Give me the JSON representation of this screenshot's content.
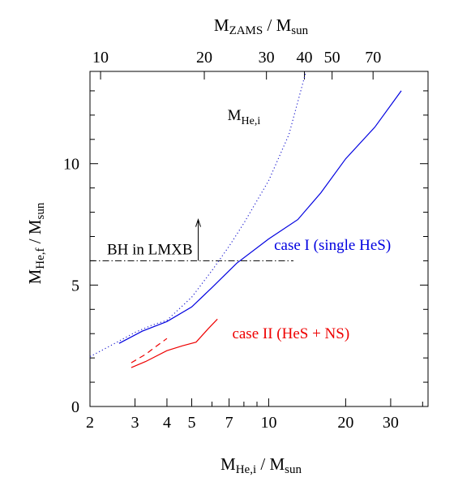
{
  "chart_data": {
    "type": "line",
    "xlabel": "M",
    "xlabel_sub": "He,i",
    "xlabel_unit": " / M",
    "xlabel_unit_sub": "sun",
    "ylabel": "M",
    "ylabel_sub": "He,f",
    "ylabel_unit": " / M",
    "ylabel_unit_sub": "sun",
    "top_xlabel": "M",
    "top_xlabel_sub": "ZAMS",
    "top_xlabel_unit": " / M",
    "top_xlabel_unit_sub": "sun",
    "x_scale": "log",
    "xlim": [
      2,
      42
    ],
    "ylim": [
      0,
      13.8
    ],
    "x_ticks": [
      2,
      3,
      4,
      5,
      7,
      10,
      20,
      30
    ],
    "y_ticks": [
      0,
      5,
      10
    ],
    "top_ticks": [
      {
        "label": "10",
        "x": 2.2
      },
      {
        "label": "20",
        "x": 5.6
      },
      {
        "label": "30",
        "x": 9.8
      },
      {
        "label": "40",
        "x": 13.8
      },
      {
        "label": "50",
        "x": 17.7
      },
      {
        "label": "70",
        "x": 25.6
      }
    ],
    "series": [
      {
        "name": "case I (single HeS)",
        "color": "#0000e0",
        "style": "solid",
        "x": [
          2.6,
          3.2,
          4.0,
          5.0,
          6.0,
          7.5,
          10.0,
          13.0,
          16.0,
          20.0,
          26.0,
          33.0
        ],
        "y": [
          2.6,
          3.1,
          3.5,
          4.1,
          4.9,
          5.9,
          6.9,
          7.7,
          8.8,
          10.2,
          11.5,
          13.0
        ]
      },
      {
        "name": "M",
        "name_sub": "He,i",
        "color": "#2020d0",
        "style": "dotted",
        "x": [
          2.0,
          2.5,
          3.0,
          3.5,
          4.0,
          5.0,
          6.0,
          7.0,
          8.0,
          10.0,
          12.0,
          14.0
        ],
        "y": [
          2.05,
          2.6,
          3.05,
          3.35,
          3.55,
          4.5,
          5.6,
          6.6,
          7.55,
          9.3,
          11.2,
          13.8
        ]
      },
      {
        "name": "case II (HeS + NS)",
        "color": "#ee0000",
        "style": "solid",
        "x": [
          2.9,
          3.3,
          4.0,
          4.6,
          5.2,
          5.8,
          6.3
        ],
        "y": [
          1.6,
          1.85,
          2.3,
          2.5,
          2.65,
          3.2,
          3.6
        ]
      },
      {
        "name": "",
        "color": "#ee0000",
        "style": "dashed",
        "x": [
          2.9,
          3.3,
          3.6,
          4.0
        ],
        "y": [
          1.8,
          2.15,
          2.45,
          2.8
        ]
      }
    ],
    "bh_line": {
      "label": "BH in LMXB",
      "y": 6.0,
      "x_start": 2.0,
      "x_end": 12.5,
      "arrow_x": 5.3,
      "arrow_y_top": 7.7
    },
    "annotations": [
      {
        "text": "case I (single HeS)",
        "color": "#0000e0",
        "x": 10.5,
        "y": 6.45
      },
      {
        "text": "case II (HeS + NS)",
        "color": "#ee0000",
        "x": 7.2,
        "y": 2.8
      },
      {
        "text": "M",
        "sub": "He,i",
        "color": "#000000",
        "x": 6.9,
        "y": 11.8
      }
    ]
  }
}
